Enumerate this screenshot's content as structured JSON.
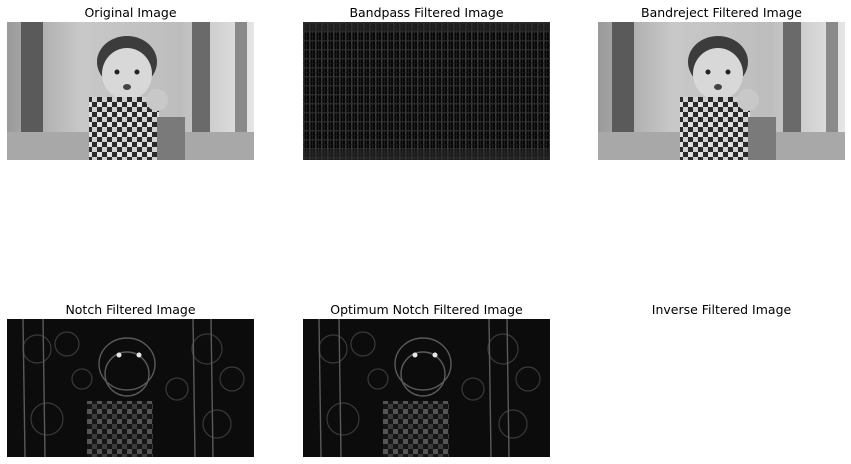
{
  "figure": {
    "panels": [
      {
        "title": "Original Image",
        "kind": "photo"
      },
      {
        "title": "Bandpass Filtered Image",
        "kind": "bandpass"
      },
      {
        "title": "Bandreject Filtered Image",
        "kind": "photo"
      },
      {
        "title": "Notch Filtered Image",
        "kind": "edges"
      },
      {
        "title": "Optimum Notch Filtered Image",
        "kind": "edges"
      },
      {
        "title": "Inverse Filtered Image",
        "kind": "blank"
      }
    ]
  }
}
